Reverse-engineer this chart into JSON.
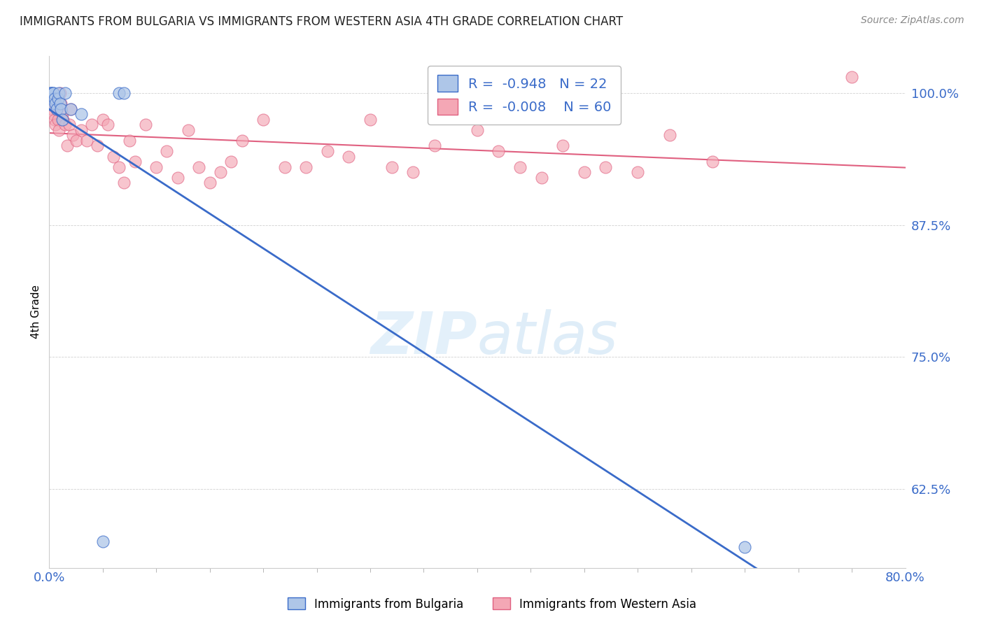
{
  "title": "IMMIGRANTS FROM BULGARIA VS IMMIGRANTS FROM WESTERN ASIA 4TH GRADE CORRELATION CHART",
  "source": "Source: ZipAtlas.com",
  "ylabel": "4th Grade",
  "xlim": [
    0.0,
    80.0
  ],
  "ylim": [
    55.0,
    103.5
  ],
  "yticks": [
    62.5,
    75.0,
    87.5,
    100.0
  ],
  "ytick_labels": [
    "62.5%",
    "75.0%",
    "87.5%",
    "100.0%"
  ],
  "blue_label": "Immigrants from Bulgaria",
  "pink_label": "Immigrants from Western Asia",
  "blue_R": -0.948,
  "blue_N": 22,
  "pink_R": -0.008,
  "pink_N": 60,
  "blue_color": "#aec6e8",
  "pink_color": "#f4a7b5",
  "blue_line_color": "#3a6bc9",
  "pink_line_color": "#e06080",
  "background_color": "#ffffff",
  "blue_x": [
    0.1,
    0.15,
    0.2,
    0.25,
    0.3,
    0.35,
    0.4,
    0.5,
    0.6,
    0.7,
    0.8,
    0.9,
    1.0,
    1.1,
    1.2,
    1.5,
    2.0,
    3.0,
    5.0,
    6.5,
    7.0,
    65.0
  ],
  "blue_y": [
    100.0,
    100.0,
    100.0,
    99.5,
    99.0,
    100.0,
    100.0,
    99.5,
    99.0,
    98.5,
    99.5,
    100.0,
    99.0,
    98.5,
    97.5,
    100.0,
    98.5,
    98.0,
    57.5,
    100.0,
    100.0,
    57.0
  ],
  "pink_x": [
    0.1,
    0.2,
    0.3,
    0.4,
    0.5,
    0.6,
    0.7,
    0.8,
    0.9,
    1.0,
    1.1,
    1.2,
    1.3,
    1.5,
    1.7,
    1.9,
    2.0,
    2.2,
    2.5,
    3.0,
    3.5,
    4.0,
    4.5,
    5.0,
    5.5,
    6.0,
    6.5,
    7.0,
    7.5,
    8.0,
    9.0,
    10.0,
    11.0,
    12.0,
    13.0,
    14.0,
    15.0,
    16.0,
    17.0,
    18.0,
    20.0,
    22.0,
    24.0,
    26.0,
    28.0,
    30.0,
    32.0,
    34.0,
    36.0,
    40.0,
    42.0,
    44.0,
    46.0,
    48.0,
    50.0,
    52.0,
    55.0,
    58.0,
    62.0,
    75.0
  ],
  "pink_y": [
    99.5,
    99.0,
    98.5,
    98.0,
    97.5,
    97.0,
    98.5,
    97.5,
    96.5,
    100.0,
    99.0,
    98.0,
    97.5,
    97.0,
    95.0,
    97.0,
    98.5,
    96.0,
    95.5,
    96.5,
    95.5,
    97.0,
    95.0,
    97.5,
    97.0,
    94.0,
    93.0,
    91.5,
    95.5,
    93.5,
    97.0,
    93.0,
    94.5,
    92.0,
    96.5,
    93.0,
    91.5,
    92.5,
    93.5,
    95.5,
    97.5,
    93.0,
    93.0,
    94.5,
    94.0,
    97.5,
    93.0,
    92.5,
    95.0,
    96.5,
    94.5,
    93.0,
    92.0,
    95.0,
    92.5,
    93.0,
    92.5,
    96.0,
    93.5,
    101.5
  ]
}
